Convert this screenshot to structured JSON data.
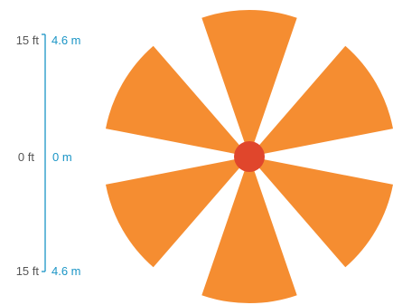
{
  "scale": {
    "top": {
      "ft": "15 ft",
      "m": "4.6 m"
    },
    "middle": {
      "ft": "0 ft",
      "m": "0 m"
    },
    "bottom": {
      "ft": "15 ft",
      "m": "4.6 m"
    }
  },
  "pattern": {
    "petal_count": 6,
    "petal_color": "#f58d31",
    "center_color": "#e0462c",
    "axis_color": "#1b95c6"
  }
}
